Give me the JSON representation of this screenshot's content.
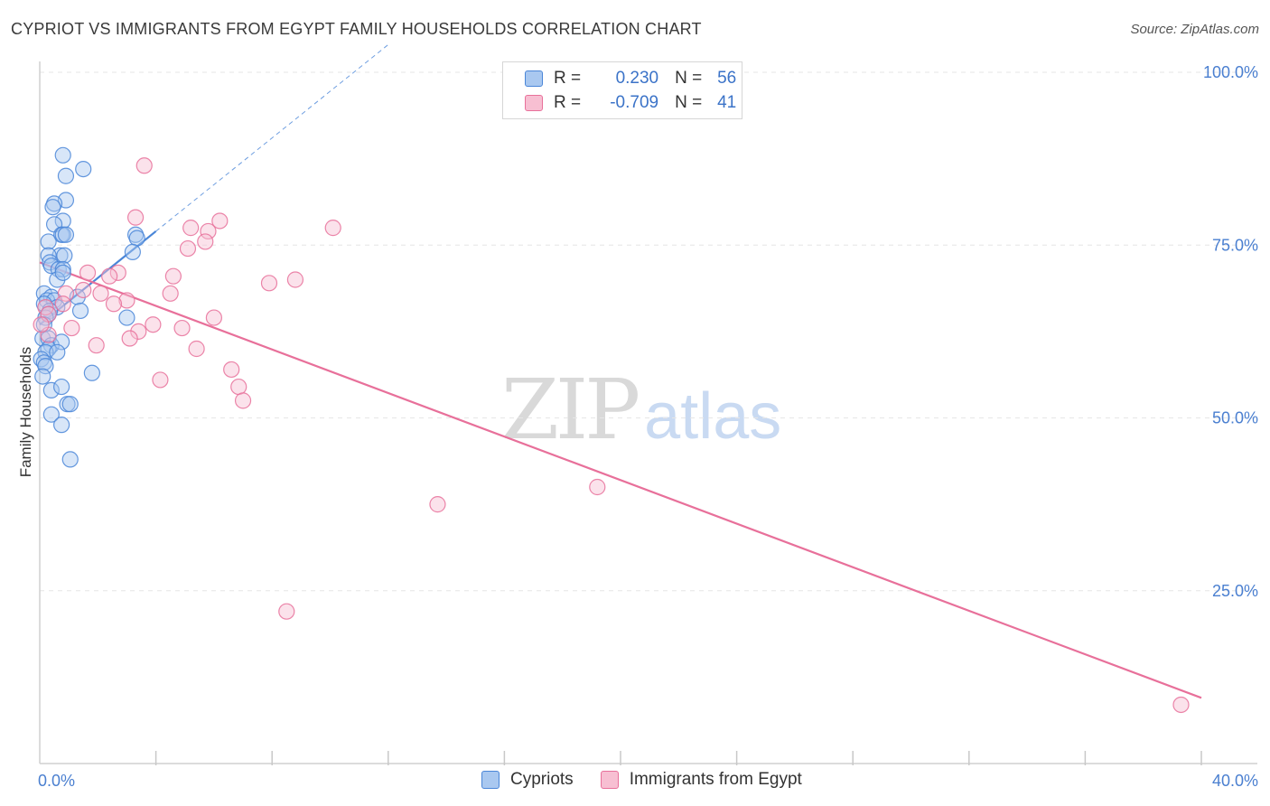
{
  "chart_data": {
    "type": "scatter",
    "title": "CYPRIOT VS IMMIGRANTS FROM EGYPT FAMILY HOUSEHOLDS CORRELATION CHART",
    "source": "Source: ZipAtlas.com",
    "xlabel": "",
    "ylabel": "Family Households",
    "xlim": [
      0,
      40
    ],
    "ylim": [
      0,
      100
    ],
    "x_tick_labels": {
      "min": "0.0%",
      "max": "40.0%"
    },
    "y_ticks": [
      {
        "value": 100,
        "label": "100.0%"
      },
      {
        "value": 75,
        "label": "75.0%"
      },
      {
        "value": 50,
        "label": "50.0%"
      },
      {
        "value": 25,
        "label": "25.0%"
      }
    ],
    "grid": true,
    "legend_position": "top-center",
    "series": [
      {
        "name": "Cypriots",
        "color": "#4a86d8",
        "fill": "#a9c8f0",
        "stats": {
          "r_label": "R =",
          "r": "0.230",
          "n_label": "N =",
          "n": "56"
        },
        "trend": {
          "x": [
            0.0,
            4.0
          ],
          "y": [
            63.5,
            77.0
          ],
          "extend_dashed_to_x": 12.0
        },
        "points": [
          [
            0.8,
            88.0
          ],
          [
            1.5,
            86.0
          ],
          [
            0.9,
            85.0
          ],
          [
            0.9,
            81.5
          ],
          [
            0.5,
            81.0
          ],
          [
            0.45,
            80.5
          ],
          [
            0.8,
            78.5
          ],
          [
            0.5,
            78.0
          ],
          [
            0.75,
            76.5
          ],
          [
            0.8,
            76.5
          ],
          [
            0.9,
            76.5
          ],
          [
            3.3,
            76.5
          ],
          [
            0.3,
            75.5
          ],
          [
            3.35,
            76.0
          ],
          [
            0.7,
            73.5
          ],
          [
            0.3,
            73.5
          ],
          [
            0.85,
            73.5
          ],
          [
            3.2,
            74.0
          ],
          [
            0.35,
            72.5
          ],
          [
            0.4,
            72.0
          ],
          [
            0.65,
            71.5
          ],
          [
            0.8,
            71.5
          ],
          [
            0.6,
            70.0
          ],
          [
            0.8,
            71.0
          ],
          [
            0.15,
            68.0
          ],
          [
            0.4,
            67.5
          ],
          [
            1.3,
            67.5
          ],
          [
            0.25,
            67.0
          ],
          [
            0.5,
            67.0
          ],
          [
            0.15,
            66.5
          ],
          [
            0.6,
            66.0
          ],
          [
            1.4,
            65.5
          ],
          [
            0.35,
            65.5
          ],
          [
            0.3,
            65.0
          ],
          [
            0.2,
            64.5
          ],
          [
            3.0,
            64.5
          ],
          [
            0.15,
            63.5
          ],
          [
            0.1,
            61.5
          ],
          [
            0.3,
            61.5
          ],
          [
            0.4,
            60.5
          ],
          [
            0.3,
            60.0
          ],
          [
            0.75,
            61.0
          ],
          [
            0.2,
            59.5
          ],
          [
            0.6,
            59.5
          ],
          [
            0.05,
            58.5
          ],
          [
            0.15,
            58.0
          ],
          [
            0.2,
            57.5
          ],
          [
            1.8,
            56.5
          ],
          [
            0.1,
            56.0
          ],
          [
            0.4,
            54.0
          ],
          [
            0.75,
            54.5
          ],
          [
            0.95,
            52.0
          ],
          [
            1.05,
            52.0
          ],
          [
            0.4,
            50.5
          ],
          [
            0.75,
            49.0
          ],
          [
            1.05,
            44.0
          ]
        ]
      },
      {
        "name": "Immigrants from Egypt",
        "color": "#e8709a",
        "fill": "#f7bfd2",
        "stats": {
          "r_label": "R =",
          "r": "-0.709",
          "n_label": "N =",
          "n": "41"
        },
        "trend": {
          "x": [
            0.0,
            40.0
          ],
          "y": [
            72.5,
            9.5
          ]
        },
        "points": [
          [
            3.6,
            86.5
          ],
          [
            3.3,
            79.0
          ],
          [
            6.2,
            78.5
          ],
          [
            10.1,
            77.5
          ],
          [
            5.2,
            77.5
          ],
          [
            5.8,
            77.0
          ],
          [
            5.7,
            75.5
          ],
          [
            5.1,
            74.5
          ],
          [
            1.65,
            71.0
          ],
          [
            2.7,
            71.0
          ],
          [
            2.4,
            70.5
          ],
          [
            4.6,
            70.5
          ],
          [
            8.8,
            70.0
          ],
          [
            7.9,
            69.5
          ],
          [
            2.1,
            68.0
          ],
          [
            0.9,
            68.0
          ],
          [
            4.5,
            68.0
          ],
          [
            3.0,
            67.0
          ],
          [
            0.8,
            66.5
          ],
          [
            2.55,
            66.5
          ],
          [
            0.2,
            66.0
          ],
          [
            0.3,
            65.0
          ],
          [
            6.0,
            64.5
          ],
          [
            3.9,
            63.5
          ],
          [
            1.1,
            63.0
          ],
          [
            3.4,
            62.5
          ],
          [
            4.9,
            63.0
          ],
          [
            0.3,
            62.0
          ],
          [
            3.1,
            61.5
          ],
          [
            1.95,
            60.5
          ],
          [
            5.4,
            60.0
          ],
          [
            6.6,
            57.0
          ],
          [
            4.15,
            55.5
          ],
          [
            6.85,
            54.5
          ],
          [
            7.0,
            52.5
          ],
          [
            19.2,
            40.0
          ],
          [
            13.7,
            37.5
          ],
          [
            8.5,
            22.0
          ],
          [
            39.3,
            8.5
          ],
          [
            0.05,
            63.5
          ],
          [
            1.5,
            68.5
          ]
        ]
      }
    ]
  },
  "watermark": {
    "part1": "ZIP",
    "part2": "atlas"
  }
}
